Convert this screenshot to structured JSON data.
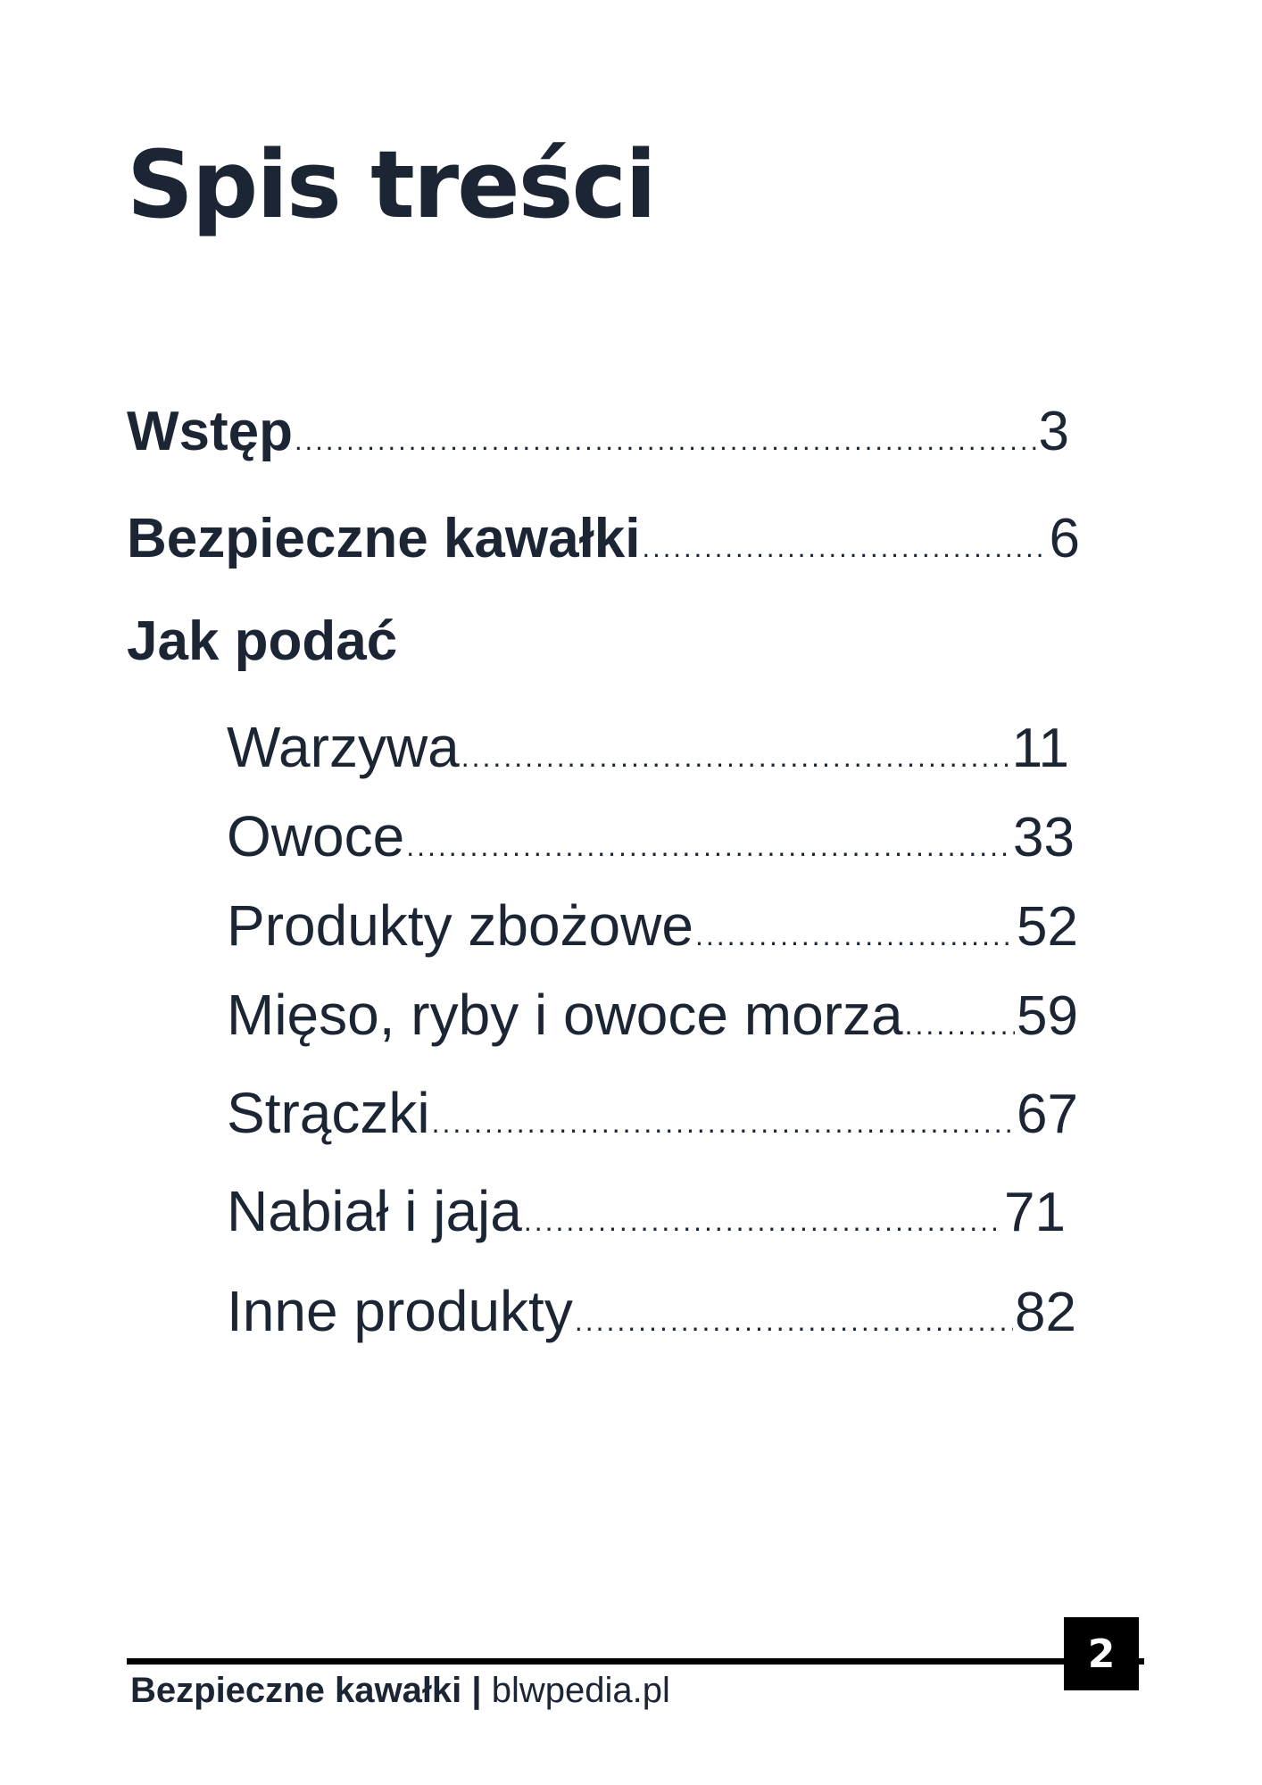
{
  "title": "Spis treści",
  "toc": {
    "intro": {
      "label": "Wstęp",
      "page": "3"
    },
    "safe_pieces": {
      "label": "Bezpieczne kawałki",
      "page": "6"
    },
    "how_to_serve": {
      "heading": "Jak podać",
      "items": [
        {
          "label": "Warzywa",
          "page": "11"
        },
        {
          "label": "Owoce",
          "page": "33"
        },
        {
          "label": "Produkty zbożowe",
          "page": "52"
        },
        {
          "label": "Mięso, ryby i owoce morza",
          "page": "59"
        },
        {
          "label": "Strączki",
          "page": "67"
        },
        {
          "label": "Nabiał i jaja",
          "page": "71"
        },
        {
          "label": "Inne produkty",
          "page": "82"
        }
      ]
    }
  },
  "footer": {
    "book_title": "Bezpieczne kawałki",
    "separator": "|",
    "site": "blwpedia.pl",
    "page_number": "2"
  }
}
